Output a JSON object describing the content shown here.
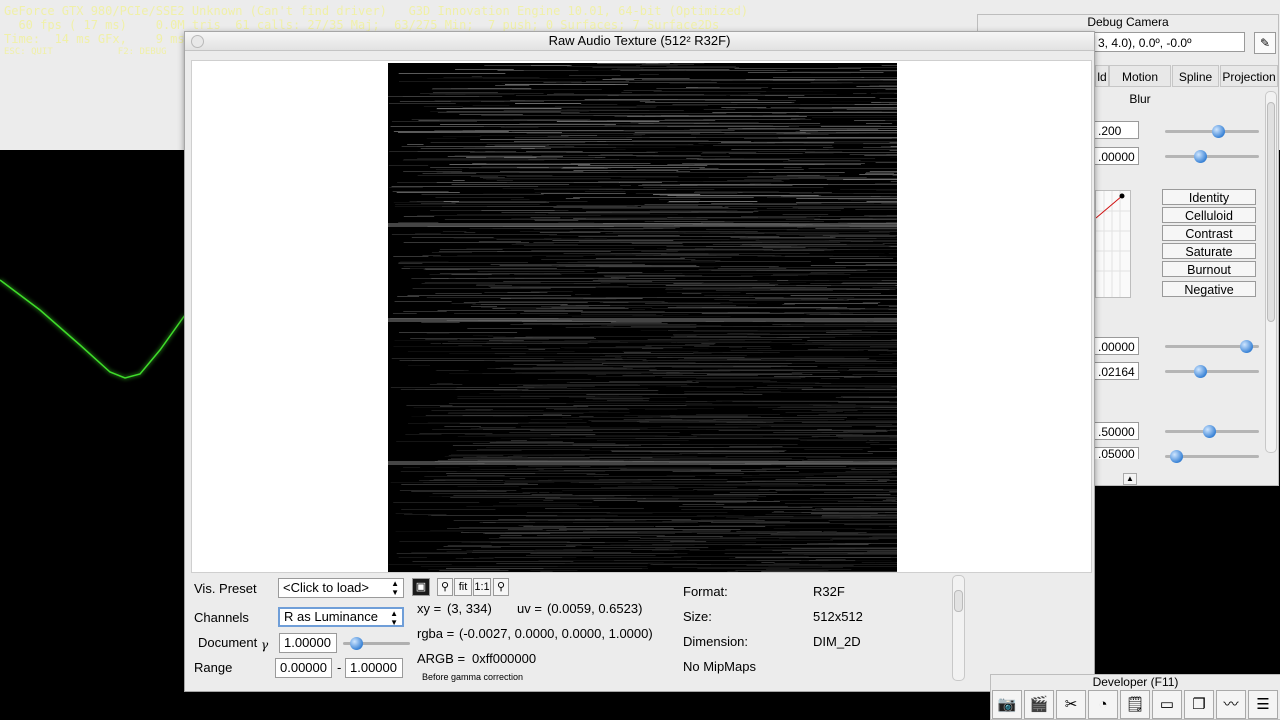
{
  "hud": {
    "line1": "GeForce GTX 980/PCIe/SSE2 Unknown (Can't find driver)   G3D Innovation Engine 10.01, 64-bit (Optimized)",
    "line2": "  60 fps ( 17 ms)    0.0M tris  61 calls: 27/35 Maj;  63/275 Min;  7 push; 0 Surfaces; 7 Surface2Ds",
    "line3": "Time:  14 ms GFx,    9 ms",
    "line4": "ESC: QUIT            F2: DEBUG"
  },
  "debug_camera": {
    "title": "Debug Camera",
    "position_text": "3,  4.0),  0.0º,  -0.0º",
    "tabs": [
      "ld",
      "Motion Blur",
      "Spline",
      "Projection"
    ],
    "values": [
      ".200",
      ".00000",
      ".00000",
      ".02164",
      ".50000",
      ".05000"
    ],
    "slider_levels": [
      0.6,
      0.4,
      0.92,
      0.4,
      0.5,
      0.13
    ],
    "presets": [
      "Identity",
      "Celluloid",
      "Contrast",
      "Saturate",
      "Burnout",
      "Negative"
    ]
  },
  "texture_window": {
    "title": "Raw Audio Texture (512² R32F)",
    "vis_preset_label": "Vis. Preset",
    "vis_preset_value": "<Click to load>",
    "channels_label": "Channels",
    "channels_value": "R as Luminance",
    "document_label": "Document",
    "gamma_symbol": "γ",
    "gamma_value": "1.00000",
    "gamma_level": 0.1,
    "range_label": "Range",
    "range_min": "0.00000",
    "range_sep": "-",
    "range_max": "1.00000",
    "buttons": {
      "fit": "fit",
      "one_to_one": "1:1"
    },
    "xy_label": "xy =",
    "xy_value": "(3, 334)",
    "uv_label": "uv =",
    "uv_value": "(0.0059, 0.6523)",
    "rgba_label": "rgba =",
    "rgba_value": "(-0.0027, 0.0000, 0.0000, 1.0000)",
    "argb_label": "ARGB =",
    "argb_value": "0xff000000",
    "gamma_note": "Before gamma correction",
    "format_label": "Format:",
    "format_value": "R32F",
    "size_label": "Size:",
    "size_value": "512x512",
    "dimension_label": "Dimension:",
    "dimension_value": "DIM_2D",
    "mipmaps": "No MipMaps"
  },
  "developer_bar": {
    "title": "Developer (F11)",
    "icons": [
      "camera-icon",
      "clapperboard-icon",
      "tools-icon",
      "speedometer-icon",
      "note-icon",
      "terminal-icon",
      "windows-icon",
      "graph-icon",
      "document-icon"
    ]
  },
  "colors": {
    "hud_text": "#f0f0a8",
    "wave": "#3fdc2a",
    "knob": "#3a83d6"
  }
}
